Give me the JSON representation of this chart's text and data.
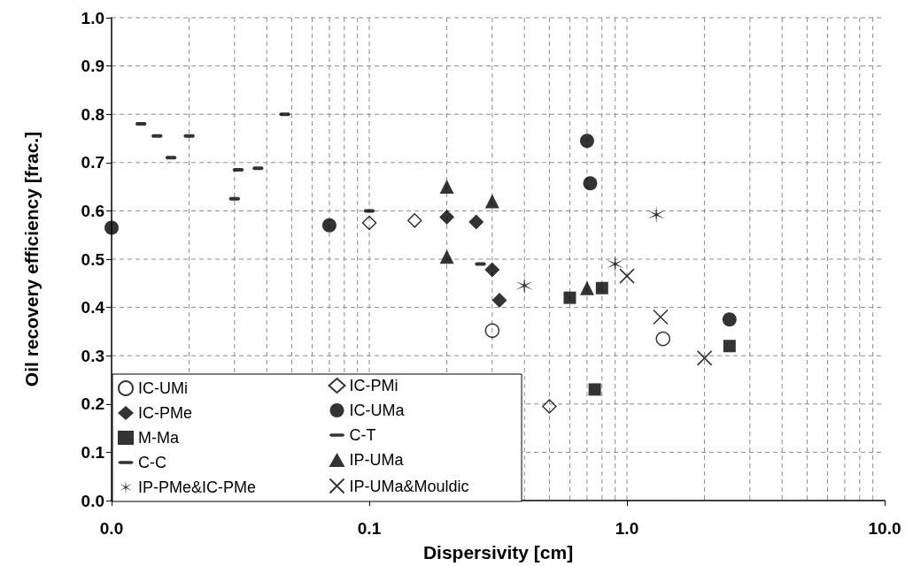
{
  "chart_data": {
    "type": "scatter",
    "xlabel": "Dispersivity [cm]",
    "ylabel": "Oil recovery efficiency [frac.]",
    "log": "x",
    "grid": true,
    "legend": "bottom left",
    "xlim": [
      0.01,
      10
    ],
    "xticks": [
      {
        "value": 0.01,
        "label": "0.0"
      },
      {
        "value": 0.1,
        "label": "0.1"
      },
      {
        "value": 1,
        "label": "1.0"
      },
      {
        "value": 10,
        "label": "10.0"
      }
    ],
    "ylim": [
      0,
      1
    ],
    "yticks": [
      {
        "value": 0,
        "label": "0.0"
      },
      {
        "value": 0.1,
        "label": "0.1"
      },
      {
        "value": 0.2,
        "label": "0.2"
      },
      {
        "value": 0.3,
        "label": "0.3"
      },
      {
        "value": 0.4,
        "label": "0.4"
      },
      {
        "value": 0.5,
        "label": "0.5"
      },
      {
        "value": 0.6,
        "label": "0.6"
      },
      {
        "value": 0.7,
        "label": "0.7"
      },
      {
        "value": 0.8,
        "label": "0.8"
      },
      {
        "value": 0.9,
        "label": "0.9"
      },
      {
        "value": 1,
        "label": "1.0"
      }
    ],
    "series": [
      {
        "name": "IC-UMi",
        "color": "#000000",
        "marker": "circle-open",
        "x": [
          0.3,
          1.38
        ],
        "values": [
          0.352,
          0.335
        ]
      },
      {
        "name": "IC-PMi",
        "color": "#000000",
        "marker": "diamond-open",
        "x": [
          0.1,
          0.15,
          0.5
        ],
        "values": [
          0.575,
          0.58,
          0.195
        ]
      },
      {
        "name": "IC-PMe",
        "color": "#000000",
        "marker": "diamond",
        "x": [
          0.2,
          0.26,
          0.3,
          0.32
        ],
        "values": [
          0.587,
          0.577,
          0.478,
          0.415
        ]
      },
      {
        "name": "IC-UMa",
        "color": "#000000",
        "marker": "circle",
        "x": [
          0.01,
          0.07,
          0.7,
          0.72,
          2.5
        ],
        "values": [
          0.565,
          0.57,
          0.745,
          0.657,
          0.375
        ]
      },
      {
        "name": "M-Ma",
        "color": "#000000",
        "marker": "square",
        "x": [
          0.6,
          0.8,
          0.75,
          2.5
        ],
        "values": [
          0.42,
          0.44,
          0.23,
          0.32
        ]
      },
      {
        "name": "C-T",
        "color": "#000000",
        "x": [
          0.02,
          0.031,
          0.037,
          0.047
        ],
        "values": [
          0.755,
          0.685,
          0.688,
          0.8
        ]
      },
      {
        "name": "C-C",
        "color": "#000000",
        "x": [
          0.013,
          0.015,
          0.017,
          0.03,
          0.1,
          0.27
        ],
        "values": [
          0.78,
          0.755,
          0.71,
          0.625,
          0.6,
          0.49
        ]
      },
      {
        "name": "IP-UMa",
        "color": "#000000",
        "marker": "triangle",
        "x": [
          0.2,
          0.2,
          0.3,
          0.7
        ],
        "values": [
          0.65,
          0.505,
          0.62,
          0.44
        ]
      },
      {
        "name": "IP-PMe&IC-PMe",
        "color": "#000000",
        "marker": "cross",
        "x": [
          0.4,
          0.9,
          1.3
        ],
        "values": [
          0.445,
          0.49,
          0.592
        ]
      },
      {
        "name": "IP-UMa&Mouldic",
        "color": "#000000",
        "marker": "x",
        "x": [
          1.0,
          1.35,
          2.0
        ],
        "values": [
          0.465,
          0.38,
          0.295
        ]
      }
    ]
  }
}
